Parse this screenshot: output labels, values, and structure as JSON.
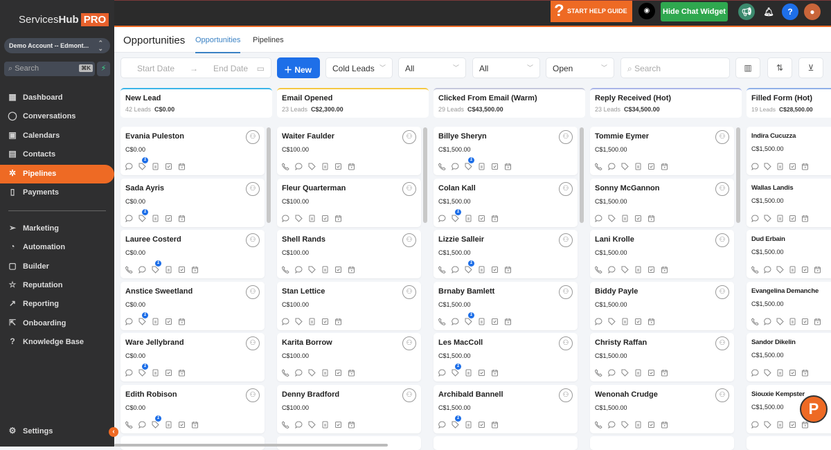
{
  "brand": {
    "name_a": "Services",
    "name_b": "Hub",
    "pro": "PRO"
  },
  "account": "Demo Account -- Edmont...",
  "sidebar_search": {
    "placeholder": "Search",
    "shortcut": "⌘K"
  },
  "sidebar": {
    "items": [
      {
        "label": "Dashboard",
        "icon": "dashboard-icon"
      },
      {
        "label": "Conversations",
        "icon": "chat-icon"
      },
      {
        "label": "Calendars",
        "icon": "calendar-icon"
      },
      {
        "label": "Contacts",
        "icon": "contacts-icon"
      },
      {
        "label": "Pipelines",
        "icon": "pipelines-icon",
        "active": true
      },
      {
        "label": "Payments",
        "icon": "payments-icon"
      },
      {
        "label": "Marketing",
        "icon": "send-icon"
      },
      {
        "label": "Automation",
        "icon": "automation-icon"
      },
      {
        "label": "Builder",
        "icon": "builder-icon"
      },
      {
        "label": "Reputation",
        "icon": "star-icon"
      },
      {
        "label": "Reporting",
        "icon": "trend-icon"
      },
      {
        "label": "Onboarding",
        "icon": "share-icon"
      },
      {
        "label": "Knowledge Base",
        "icon": "question-icon"
      }
    ],
    "settings": "Settings"
  },
  "topbar": {
    "help_guide": "START HELP GUIDE",
    "hide_chat": "Hide Chat Widget"
  },
  "header": {
    "title": "Opportunities",
    "tabs": [
      "Opportunities",
      "Pipelines"
    ]
  },
  "toolbar": {
    "start_date": "Start Date",
    "end_date": "End Date",
    "new": "New",
    "pipeline": "Cold Leads",
    "filter1": "All",
    "filter2": "All",
    "status": "Open",
    "search_placeholder": "Search"
  },
  "columns": [
    {
      "name": "New Lead",
      "count": "42 Leads",
      "total": "C$0.00",
      "color": "#3bb4e8",
      "cards": [
        {
          "name": "Evania Puleston",
          "value": "C$0.00",
          "phone": false,
          "badge": "1"
        },
        {
          "name": "Sada Ayris",
          "value": "C$0.00",
          "phone": false,
          "badge": "1"
        },
        {
          "name": "Lauree Costerd",
          "value": "C$0.00",
          "phone": true,
          "badge": "1"
        },
        {
          "name": "Anstice Sweetland",
          "value": "C$0.00",
          "phone": false,
          "badge": "1"
        },
        {
          "name": "Ware Jellybrand",
          "value": "C$0.00",
          "phone": false,
          "badge": "1"
        },
        {
          "name": "Edith Robison",
          "value": "C$0.00",
          "phone": true,
          "badge": "1"
        }
      ]
    },
    {
      "name": "Email Opened",
      "count": "23 Leads",
      "total": "C$2,300.00",
      "color": "#f5c842",
      "cards": [
        {
          "name": "Waiter Faulder",
          "value": "C$100.00",
          "phone": true
        },
        {
          "name": "Fleur Quarterman",
          "value": "C$100.00",
          "phone": false
        },
        {
          "name": "Shell Rands",
          "value": "C$100.00",
          "phone": true
        },
        {
          "name": "Stan Lettice",
          "value": "C$100.00",
          "phone": false
        },
        {
          "name": "Karita Borrow",
          "value": "C$100.00",
          "phone": true
        },
        {
          "name": "Denny Bradford",
          "value": "C$100.00",
          "phone": true
        }
      ]
    },
    {
      "name": "Clicked From Email (Warm)",
      "count": "29 Leads",
      "total": "C$43,500.00",
      "color": "#c5c8dc",
      "cards": [
        {
          "name": "Billye Sheryn",
          "value": "C$1,500.00",
          "phone": true,
          "badge": "1"
        },
        {
          "name": "Colan Kall",
          "value": "C$1,500.00",
          "phone": false,
          "badge": "1"
        },
        {
          "name": "Lizzie Salleir",
          "value": "C$1,500.00",
          "phone": true,
          "badge": "1"
        },
        {
          "name": "Brnaby Bamlett",
          "value": "C$1,500.00",
          "phone": true,
          "badge": "1"
        },
        {
          "name": "Les MacColl",
          "value": "C$1,500.00",
          "phone": false,
          "badge": "1"
        },
        {
          "name": "Archibald Bannell",
          "value": "C$1,500.00",
          "phone": false,
          "badge": "1"
        }
      ]
    },
    {
      "name": "Reply Received (Hot)",
      "count": "23 Leads",
      "total": "C$34,500.00",
      "color": "#a9b4e8",
      "cards": [
        {
          "name": "Tommie Eymer",
          "value": "C$1,500.00",
          "phone": true
        },
        {
          "name": "Sonny McGannon",
          "value": "C$1,500.00",
          "phone": false
        },
        {
          "name": "Lani Krolle",
          "value": "C$1,500.00",
          "phone": true
        },
        {
          "name": "Biddy Payle",
          "value": "C$1,500.00",
          "phone": false
        },
        {
          "name": "Christy Raffan",
          "value": "C$1,500.00",
          "phone": true
        },
        {
          "name": "Wenonah Crudge",
          "value": "C$1,500.00",
          "phone": true
        }
      ]
    },
    {
      "name": "Filled Form (Hot)",
      "count": "19 Leads",
      "total": "C$28,500.00",
      "color": "#8fb0e8",
      "cards": [
        {
          "name": "Indira Cucuzza",
          "value": "C$1,500.00",
          "phone": false
        },
        {
          "name": "Wallas Landis",
          "value": "C$1,500.00",
          "phone": false
        },
        {
          "name": "Dud Erbain",
          "value": "C$1,500.00",
          "phone": true
        },
        {
          "name": "Evangelina Demanche",
          "value": "C$1,500.00",
          "phone": true
        },
        {
          "name": "Sandor Dikelin",
          "value": "C$1,500.00",
          "phone": false
        },
        {
          "name": "Siouxie Kempster",
          "value": "C$1,500.00",
          "phone": false
        }
      ]
    }
  ],
  "chat_bubble": "P",
  "colors": {
    "accent": "#ee6a24",
    "primary": "#1e6fe8",
    "green": "#2fa84f"
  }
}
